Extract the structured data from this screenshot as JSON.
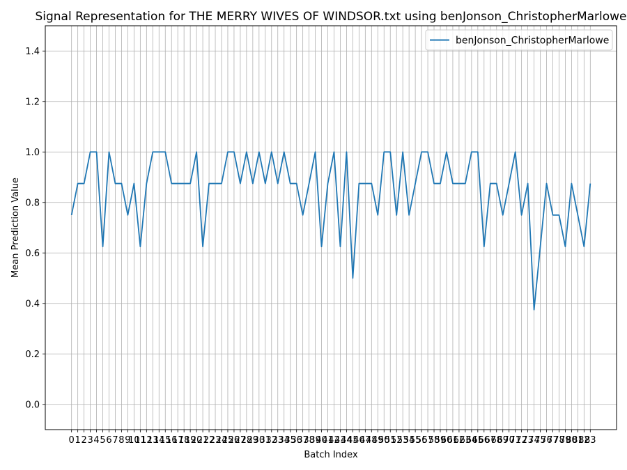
{
  "chart_data": {
    "type": "line",
    "title": "Signal Representation for THE MERRY WIVES OF WINDSOR.txt using benJonson_ChristopherMarlowe",
    "xlabel": "Batch Index",
    "ylabel": "Mean Prediction Value",
    "ylim": [
      -0.1,
      1.5
    ],
    "yticks": [
      "0.0",
      "0.2",
      "0.4",
      "0.6",
      "0.8",
      "1.0",
      "1.2",
      "1.4"
    ],
    "xlim": [
      -4.2,
      87.2
    ],
    "grid": true,
    "legend_position": "upper right",
    "series": [
      {
        "name": "benJonson_ChristopherMarlowe",
        "color": "#1f77b4",
        "x": [
          0,
          1,
          2,
          3,
          4,
          5,
          6,
          7,
          8,
          9,
          10,
          11,
          12,
          13,
          14,
          15,
          16,
          17,
          18,
          19,
          20,
          21,
          22,
          23,
          24,
          25,
          26,
          27,
          28,
          29,
          30,
          31,
          32,
          33,
          34,
          35,
          36,
          37,
          38,
          39,
          40,
          41,
          42,
          43,
          44,
          45,
          46,
          47,
          48,
          49,
          50,
          51,
          52,
          53,
          54,
          55,
          56,
          57,
          58,
          59,
          60,
          61,
          62,
          63,
          64,
          65,
          66,
          67,
          68,
          69,
          70,
          71,
          72,
          73,
          74,
          75,
          76,
          77,
          78,
          79,
          80,
          81,
          82,
          83
        ],
        "values": [
          0.75,
          0.875,
          0.875,
          1.0,
          1.0,
          0.625,
          1.0,
          0.875,
          0.875,
          0.75,
          0.875,
          0.625,
          0.875,
          1.0,
          1.0,
          1.0,
          0.875,
          0.875,
          0.875,
          0.875,
          1.0,
          0.625,
          0.875,
          0.875,
          0.875,
          1.0,
          1.0,
          0.875,
          1.0,
          0.875,
          1.0,
          0.875,
          1.0,
          0.875,
          1.0,
          0.875,
          0.875,
          0.75,
          0.875,
          1.0,
          0.625,
          0.875,
          1.0,
          0.625,
          1.0,
          0.5,
          0.875,
          0.875,
          0.875,
          0.75,
          1.0,
          1.0,
          0.75,
          1.0,
          0.75,
          0.875,
          1.0,
          1.0,
          0.875,
          0.875,
          1.0,
          0.875,
          0.875,
          0.875,
          1.0,
          1.0,
          0.625,
          0.875,
          0.875,
          0.75,
          0.875,
          1.0,
          0.75,
          0.875,
          0.375,
          0.625,
          0.875,
          0.75,
          0.75,
          0.625,
          0.875,
          0.75,
          0.625,
          0.875
        ]
      }
    ]
  }
}
